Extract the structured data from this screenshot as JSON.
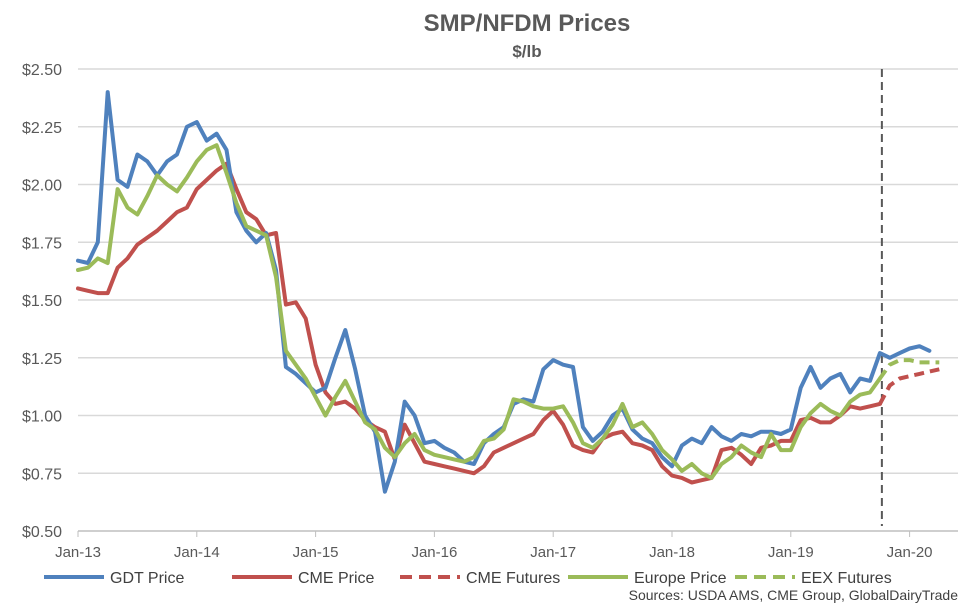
{
  "chart_data": {
    "type": "line",
    "title": "SMP/NFDM Prices",
    "subtitle": "$/lb",
    "xlabel": "",
    "ylabel": "",
    "ylim": [
      0.5,
      2.5
    ],
    "y_ticks": [
      "$0.50",
      "$0.75",
      "$1.00",
      "$1.25",
      "$1.50",
      "$1.75",
      "$2.00",
      "$2.25",
      "$2.50"
    ],
    "y_tick_values": [
      0.5,
      0.75,
      1.0,
      1.25,
      1.5,
      1.75,
      2.0,
      2.25,
      2.5
    ],
    "x_ticks": [
      "Jan-13",
      "Jan-14",
      "Jan-15",
      "Jan-16",
      "Jan-17",
      "Jan-18",
      "Jan-19",
      "Jan-20"
    ],
    "x_tick_months": [
      0,
      12,
      24,
      36,
      48,
      60,
      72,
      84
    ],
    "x_unit": "months since Jan-13",
    "grid": "horizontal",
    "legend_position": "bottom",
    "forecast_divider_month": 81.2,
    "sources": "Sources:  USDA AMS, CME Group, GlobalDairyTrade",
    "series": [
      {
        "name": "GDT Price",
        "color": "#4F81BD",
        "dash": false,
        "start": 0,
        "values": [
          1.67,
          1.66,
          1.75,
          2.4,
          2.02,
          1.99,
          2.13,
          2.1,
          2.04,
          2.1,
          2.13,
          2.25,
          2.27,
          2.19,
          2.22,
          2.15,
          1.88,
          1.8,
          1.75,
          1.79,
          1.63,
          1.21,
          1.18,
          1.14,
          1.1,
          1.12,
          1.25,
          1.37,
          1.2,
          1.0,
          0.93,
          0.67,
          0.8,
          1.06,
          1.0,
          0.88,
          0.89,
          0.86,
          0.84,
          0.8,
          0.79,
          0.88,
          0.92,
          0.95,
          1.05,
          1.07,
          1.06,
          1.2,
          1.24,
          1.22,
          1.21,
          0.95,
          0.89,
          0.93,
          1.0,
          1.03,
          0.94,
          0.9,
          0.88,
          0.82,
          0.78,
          0.87,
          0.9,
          0.88,
          0.95,
          0.91,
          0.89,
          0.92,
          0.91,
          0.93,
          0.93,
          0.92,
          0.94,
          1.12,
          1.21,
          1.12,
          1.16,
          1.18,
          1.1,
          1.16,
          1.15,
          1.27,
          1.25,
          1.27,
          1.29,
          1.3,
          1.28
        ]
      },
      {
        "name": "CME Price",
        "color": "#C0504D",
        "dash": false,
        "start": 0,
        "values": [
          1.55,
          1.54,
          1.53,
          1.53,
          1.64,
          1.68,
          1.74,
          1.77,
          1.8,
          1.84,
          1.88,
          1.9,
          1.98,
          2.02,
          2.06,
          2.09,
          1.98,
          1.88,
          1.85,
          1.78,
          1.79,
          1.48,
          1.49,
          1.42,
          1.22,
          1.1,
          1.05,
          1.06,
          1.03,
          0.98,
          0.95,
          0.93,
          0.81,
          0.96,
          0.88,
          0.8,
          0.79,
          0.78,
          0.77,
          0.76,
          0.75,
          0.78,
          0.84,
          0.86,
          0.88,
          0.9,
          0.92,
          0.98,
          1.02,
          0.96,
          0.87,
          0.85,
          0.84,
          0.9,
          0.92,
          0.93,
          0.88,
          0.87,
          0.85,
          0.78,
          0.74,
          0.73,
          0.71,
          0.72,
          0.73,
          0.85,
          0.86,
          0.83,
          0.79,
          0.86,
          0.87,
          0.89,
          0.89,
          0.98,
          0.99,
          0.97,
          0.97,
          1.0,
          1.04,
          1.03,
          1.04,
          1.05
        ]
      },
      {
        "name": "CME Futures",
        "color": "#C0504D",
        "dash": true,
        "start": 81,
        "values": [
          1.05,
          1.13,
          1.16,
          1.17,
          1.18,
          1.19,
          1.2
        ]
      },
      {
        "name": "Europe Price",
        "color": "#9BBB59",
        "dash": false,
        "start": 0,
        "values": [
          1.63,
          1.64,
          1.68,
          1.66,
          1.98,
          1.9,
          1.87,
          1.95,
          2.04,
          2.0,
          1.97,
          2.03,
          2.1,
          2.15,
          2.17,
          2.05,
          1.92,
          1.82,
          1.8,
          1.78,
          1.6,
          1.28,
          1.22,
          1.16,
          1.08,
          1.0,
          1.08,
          1.15,
          1.06,
          0.97,
          0.94,
          0.86,
          0.82,
          0.88,
          0.92,
          0.85,
          0.83,
          0.82,
          0.81,
          0.8,
          0.82,
          0.89,
          0.9,
          0.94,
          1.07,
          1.06,
          1.04,
          1.03,
          1.03,
          1.04,
          0.97,
          0.88,
          0.86,
          0.9,
          0.96,
          1.05,
          0.95,
          0.97,
          0.92,
          0.85,
          0.81,
          0.76,
          0.79,
          0.75,
          0.73,
          0.79,
          0.82,
          0.87,
          0.84,
          0.82,
          0.92,
          0.85,
          0.85,
          0.95,
          1.01,
          1.05,
          1.02,
          1.0,
          1.06,
          1.09,
          1.1,
          1.16
        ]
      },
      {
        "name": "EEX Futures",
        "color": "#9BBB59",
        "dash": true,
        "start": 81,
        "values": [
          1.16,
          1.22,
          1.24,
          1.24,
          1.23,
          1.23,
          1.23
        ]
      }
    ]
  }
}
